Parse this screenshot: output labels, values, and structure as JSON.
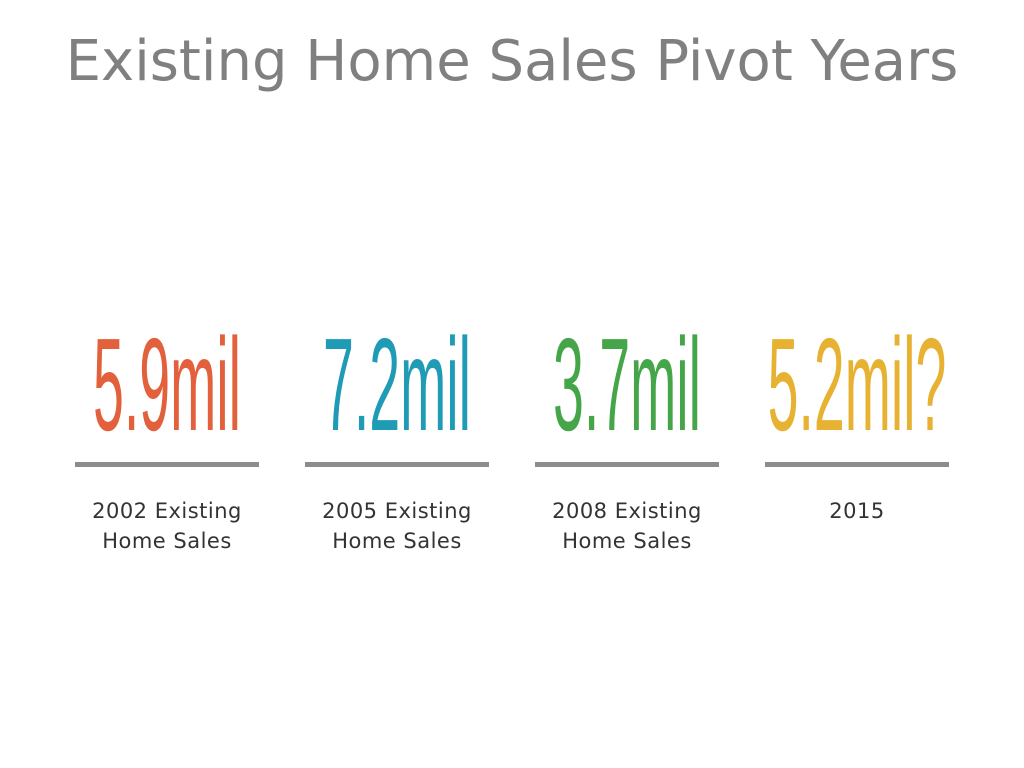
{
  "header": {
    "title": "Existing Home Sales Pivot Years"
  },
  "items": [
    {
      "value": "5.9mil",
      "label": "2002 Existing Home Sales",
      "color": "#e2603c"
    },
    {
      "value": "7.2mil",
      "label": "2005 Existing Home Sales",
      "color": "#1f9bb5"
    },
    {
      "value": "3.7mil",
      "label": "2008 Existing Home Sales",
      "color": "#45a549"
    },
    {
      "value": "5.2mil?",
      "label": "2015",
      "color": "#e7b232"
    }
  ]
}
